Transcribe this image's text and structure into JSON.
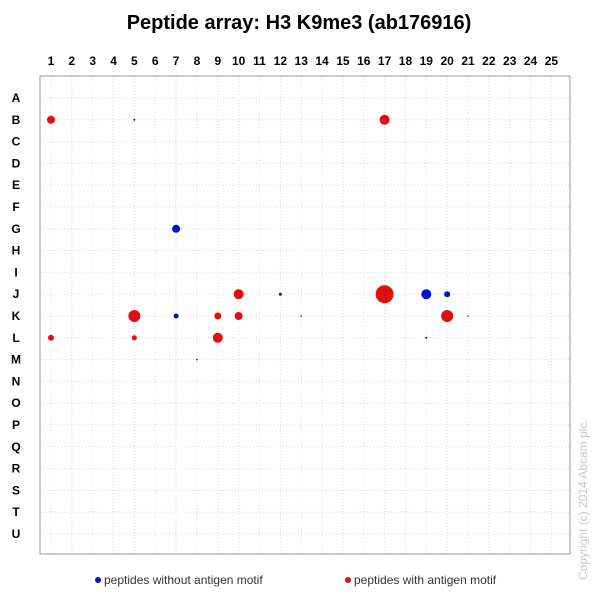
{
  "chart_data": {
    "type": "scatter",
    "title": "Peptide array: H3 K9me3 (ab176916)",
    "x": [
      "1",
      "2",
      "3",
      "4",
      "5",
      "6",
      "7",
      "8",
      "9",
      "10",
      "11",
      "12",
      "13",
      "14",
      "15",
      "16",
      "17",
      "18",
      "19",
      "20",
      "21",
      "22",
      "23",
      "24",
      "25"
    ],
    "y": [
      "A",
      "B",
      "C",
      "D",
      "E",
      "F",
      "G",
      "H",
      "I",
      "J",
      "K",
      "L",
      "M",
      "N",
      "O",
      "P",
      "Q",
      "R",
      "S",
      "T",
      "U"
    ],
    "grid": true,
    "legend_position": "bottom",
    "series": [
      {
        "name": "peptides without antigen motif",
        "color": "#0015c8",
        "points": [
          {
            "col": 5,
            "row": "B",
            "size": 1
          },
          {
            "col": 7,
            "row": "G",
            "size": 4
          },
          {
            "col": 12,
            "row": "J",
            "size": 1.5
          },
          {
            "col": 19,
            "row": "J",
            "size": 5
          },
          {
            "col": 20,
            "row": "J",
            "size": 3
          },
          {
            "col": 7,
            "row": "K",
            "size": 2.5
          },
          {
            "col": 13,
            "row": "K",
            "size": 0.8
          },
          {
            "col": 19,
            "row": "L",
            "size": 1
          },
          {
            "col": 8,
            "row": "M",
            "size": 0.8
          }
        ]
      },
      {
        "name": "peptides with antigen motif",
        "color": "#e01010",
        "points": [
          {
            "col": 1,
            "row": "B",
            "size": 4
          },
          {
            "col": 17,
            "row": "B",
            "size": 5
          },
          {
            "col": 10,
            "row": "J",
            "size": 5
          },
          {
            "col": 17,
            "row": "J",
            "size": 9
          },
          {
            "col": 5,
            "row": "K",
            "size": 6
          },
          {
            "col": 9,
            "row": "K",
            "size": 3.5
          },
          {
            "col": 10,
            "row": "K",
            "size": 4
          },
          {
            "col": 20,
            "row": "K",
            "size": 6
          },
          {
            "col": 21,
            "row": "K",
            "size": 0.8
          },
          {
            "col": 1,
            "row": "L",
            "size": 3
          },
          {
            "col": 5,
            "row": "L",
            "size": 2.5
          },
          {
            "col": 9,
            "row": "L",
            "size": 5
          }
        ]
      }
    ]
  },
  "copyright": "Copyright (c) 2014 Abcam plc."
}
